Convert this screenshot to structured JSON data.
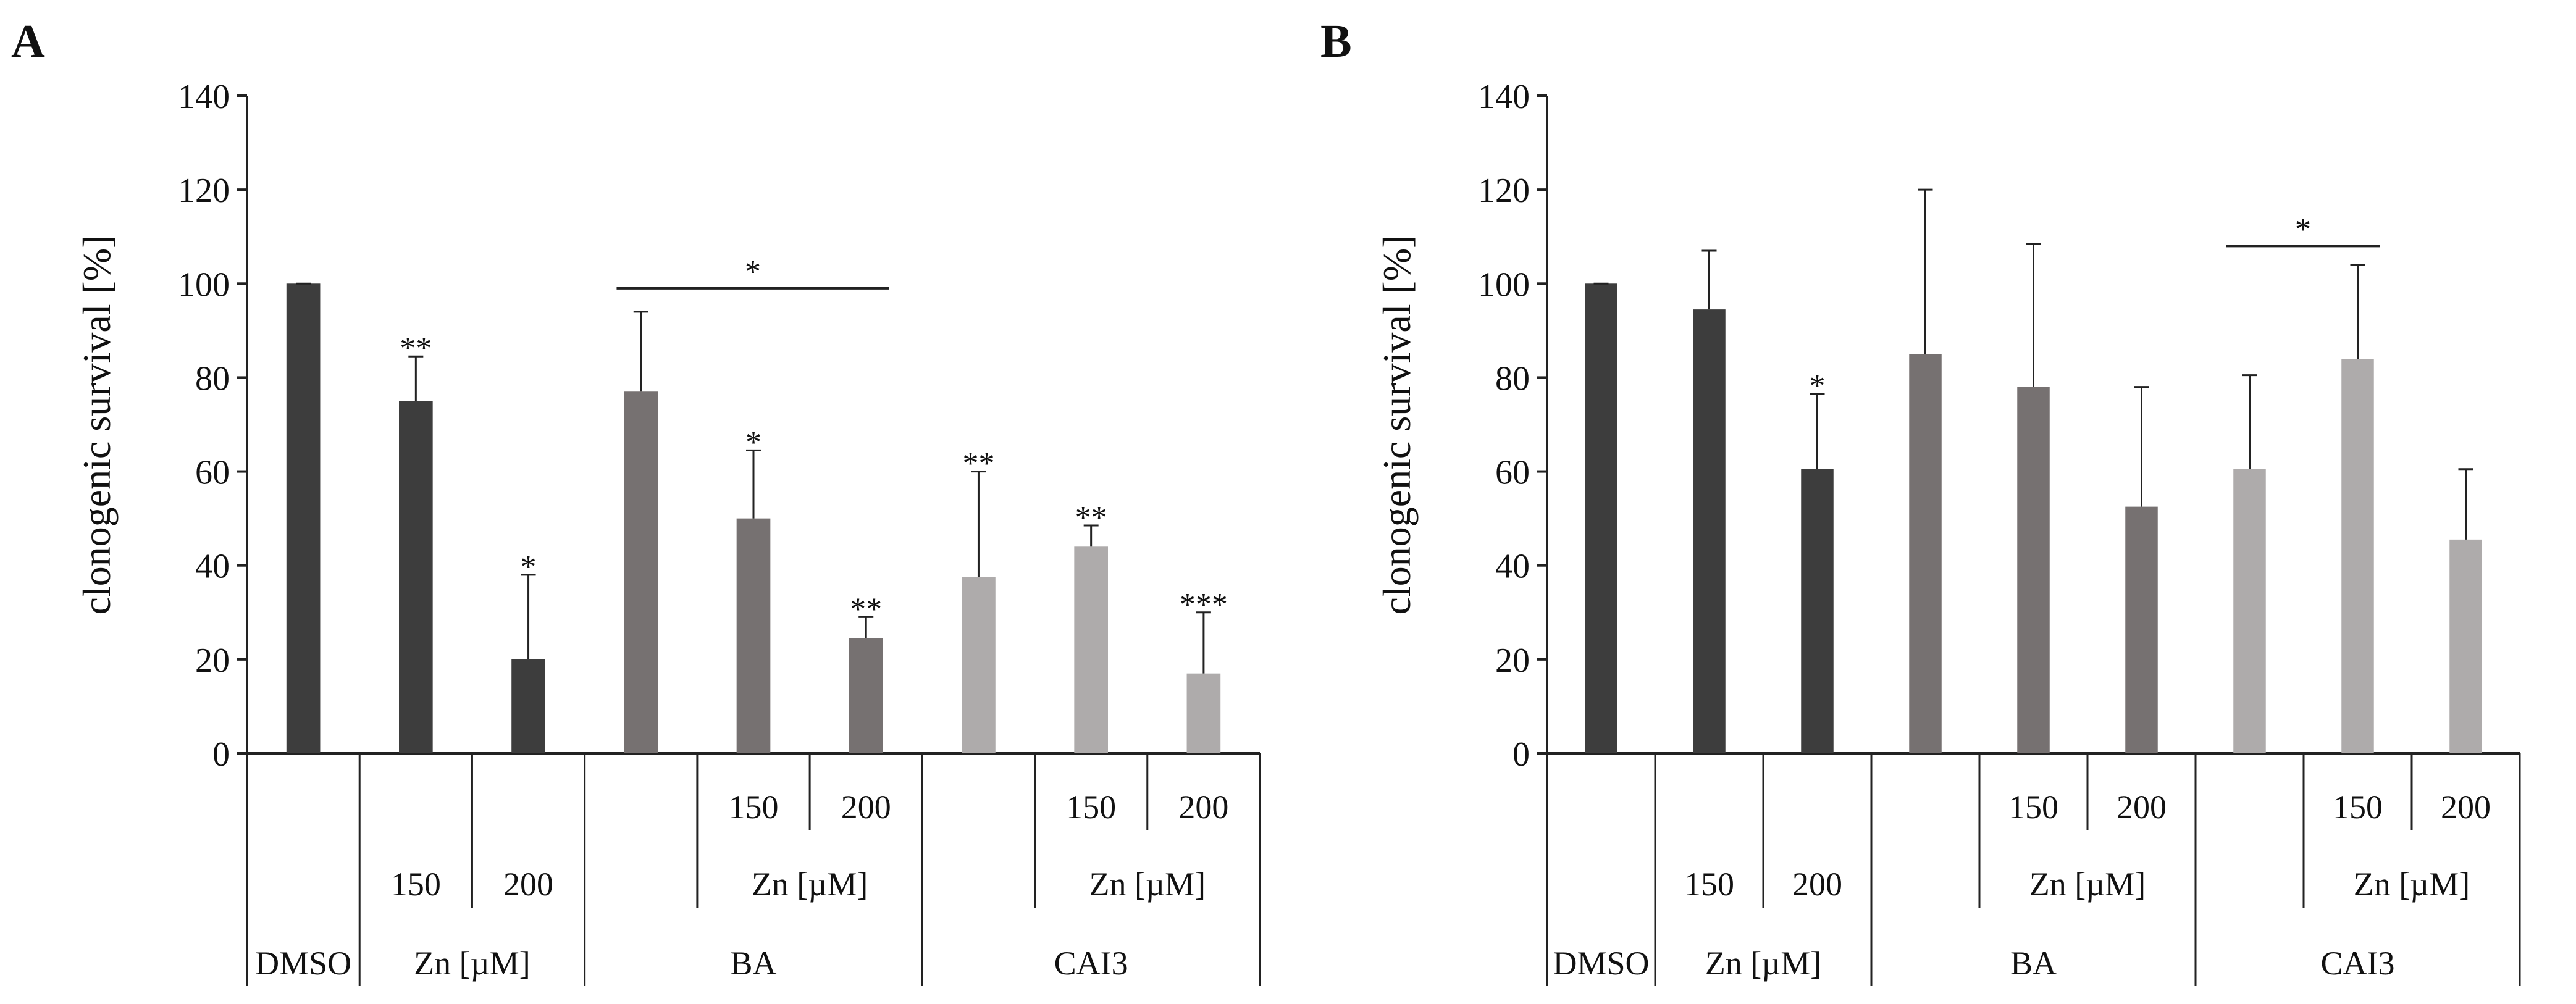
{
  "panels": [
    {
      "panel_label": "A",
      "chart_data": {
        "type": "bar",
        "title": "",
        "xlabel": "",
        "ylabel": "clonogenic survival [%]",
        "ylim": [
          0,
          140
        ],
        "yticks": [
          0,
          20,
          40,
          60,
          80,
          100,
          120,
          140
        ],
        "grid": false,
        "legend": "none",
        "bars": [
          {
            "group": "DMSO",
            "conc": "",
            "value": 100,
            "error": 0,
            "sig": "",
            "color": "#3d3d3d"
          },
          {
            "group": "Zn [µM]",
            "conc": "150",
            "value": 75,
            "error": 9.5,
            "sig": "**",
            "color": "#3d3d3d"
          },
          {
            "group": "Zn [µM]",
            "conc": "200",
            "value": 20,
            "error": 18,
            "sig": "*",
            "color": "#3d3d3d"
          },
          {
            "group": "BA",
            "conc": "",
            "value": 77,
            "error": 17,
            "sig": "",
            "color": "#767171"
          },
          {
            "group": "BA",
            "conc": "150",
            "value": 50,
            "error": 14.5,
            "sig": "*",
            "color": "#767171"
          },
          {
            "group": "BA",
            "conc": "200",
            "value": 24.5,
            "error": 4.5,
            "sig": "**",
            "color": "#767171"
          },
          {
            "group": "CAI3",
            "conc": "",
            "value": 37.5,
            "error": 22.5,
            "sig": "**",
            "color": "#aeabab"
          },
          {
            "group": "CAI3",
            "conc": "150",
            "value": 44,
            "error": 4.5,
            "sig": "**",
            "color": "#aeabab"
          },
          {
            "group": "CAI3",
            "conc": "200",
            "value": 17,
            "error": 13,
            "sig": "***",
            "color": "#aeabab"
          }
        ],
        "brackets": [
          {
            "from": 3,
            "to": 5,
            "y": 99,
            "label": "*"
          }
        ],
        "x_rows": {
          "row1": [
            {
              "text": "150",
              "bar": 4
            },
            {
              "text": "200",
              "bar": 5
            },
            {
              "text": "150",
              "bar": 7
            },
            {
              "text": "200",
              "bar": 8
            }
          ],
          "row2": [
            {
              "text": "150",
              "bar": 1
            },
            {
              "text": "200",
              "bar": 2
            },
            {
              "text": "Zn [µM]",
              "bar": 4.5
            },
            {
              "text": "Zn [µM]",
              "bar": 7.5
            }
          ],
          "row3": [
            {
              "text": "DMSO",
              "bar": 0
            },
            {
              "text": "Zn [µM]",
              "bar": 1.5
            },
            {
              "text": "BA",
              "bar": 4
            },
            {
              "text": "CAI3",
              "bar": 7
            }
          ]
        }
      }
    },
    {
      "panel_label": "B",
      "chart_data": {
        "type": "bar",
        "title": "",
        "xlabel": "",
        "ylabel": "clonogenic survival [%]",
        "ylim": [
          0,
          140
        ],
        "yticks": [
          0,
          20,
          40,
          60,
          80,
          100,
          120,
          140
        ],
        "grid": false,
        "legend": "none",
        "bars": [
          {
            "group": "DMSO",
            "conc": "",
            "value": 100,
            "error": 0,
            "sig": "",
            "color": "#3d3d3d"
          },
          {
            "group": "Zn [µM]",
            "conc": "150",
            "value": 94.5,
            "error": 12.5,
            "sig": "",
            "color": "#3d3d3d"
          },
          {
            "group": "Zn [µM]",
            "conc": "200",
            "value": 60.5,
            "error": 16,
            "sig": "*",
            "color": "#3d3d3d"
          },
          {
            "group": "BA",
            "conc": "",
            "value": 85,
            "error": 35,
            "sig": "",
            "color": "#767171"
          },
          {
            "group": "BA",
            "conc": "150",
            "value": 78,
            "error": 30.5,
            "sig": "",
            "color": "#767171"
          },
          {
            "group": "BA",
            "conc": "200",
            "value": 52.5,
            "error": 25.5,
            "sig": "",
            "color": "#767171"
          },
          {
            "group": "CAI3",
            "conc": "",
            "value": 60.5,
            "error": 20,
            "sig": "",
            "color": "#aeabab"
          },
          {
            "group": "CAI3",
            "conc": "150",
            "value": 84,
            "error": 20,
            "sig": "",
            "color": "#aeabab"
          },
          {
            "group": "CAI3",
            "conc": "200",
            "value": 45.5,
            "error": 15,
            "sig": "",
            "color": "#aeabab"
          }
        ],
        "brackets": [
          {
            "from": 6,
            "to": 7,
            "y": 108,
            "label": "*"
          }
        ],
        "x_rows": {
          "row1": [
            {
              "text": "150",
              "bar": 4
            },
            {
              "text": "200",
              "bar": 5
            },
            {
              "text": "150",
              "bar": 7
            },
            {
              "text": "200",
              "bar": 8
            }
          ],
          "row2": [
            {
              "text": "150",
              "bar": 1
            },
            {
              "text": "200",
              "bar": 2
            },
            {
              "text": "Zn [µM]",
              "bar": 4.5
            },
            {
              "text": "Zn [µM]",
              "bar": 7.5
            }
          ],
          "row3": [
            {
              "text": "DMSO",
              "bar": 0
            },
            {
              "text": "Zn [µM]",
              "bar": 1.5
            },
            {
              "text": "BA",
              "bar": 4
            },
            {
              "text": "CAI3",
              "bar": 7
            }
          ]
        }
      }
    }
  ]
}
